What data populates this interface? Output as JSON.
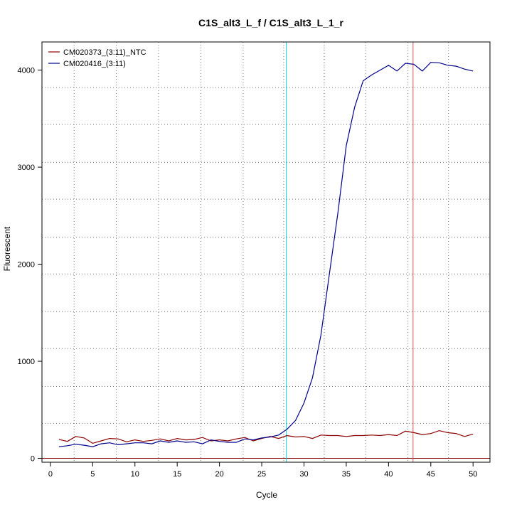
{
  "chart_data": {
    "type": "line",
    "title": "C1S_alt3_L_f / C1S_alt3_L_1_r",
    "xlabel": "Cycle",
    "ylabel": "Fluorescent",
    "xlim": [
      -1,
      52
    ],
    "ylim": [
      -40,
      4290
    ],
    "x_ticks": [
      0,
      5,
      10,
      15,
      20,
      25,
      30,
      35,
      40,
      45,
      50
    ],
    "y_ticks": [
      0,
      1000,
      2000,
      3000,
      4000
    ],
    "x_grid": [
      2.8,
      7.8,
      12.8,
      17.8,
      22.8,
      27.6,
      32.4,
      37.3,
      42.3,
      47.1
    ],
    "y_grid": [
      360,
      740,
      1130,
      1510,
      1900,
      2280,
      2670,
      3050,
      3440,
      3820
    ],
    "grid": true,
    "legend_position": "top-left",
    "baseline": {
      "y": 0,
      "color": "#8b0000"
    },
    "vlines": [
      {
        "x": 27.9,
        "color": "#00e5ee"
      },
      {
        "x": 42.9,
        "color": "#cd5c5c"
      }
    ],
    "series": [
      {
        "name": "CM020373_(3:11)_NTC",
        "color": "#8b0000",
        "x": [
          1,
          2,
          3,
          4,
          5,
          6,
          7,
          8,
          9,
          10,
          11,
          12,
          13,
          14,
          15,
          16,
          17,
          18,
          19,
          20,
          21,
          22,
          23,
          24,
          25,
          26,
          27,
          28,
          29,
          30,
          31,
          32,
          33,
          34,
          35,
          36,
          37,
          38,
          39,
          40,
          41,
          42,
          43,
          44,
          45,
          46,
          47,
          48,
          49,
          50
        ],
        "values": [
          195,
          175,
          225,
          210,
          155,
          180,
          205,
          200,
          170,
          190,
          175,
          185,
          200,
          180,
          205,
          190,
          195,
          215,
          180,
          190,
          180,
          200,
          215,
          180,
          205,
          225,
          205,
          235,
          220,
          225,
          205,
          240,
          235,
          235,
          225,
          235,
          235,
          240,
          235,
          245,
          235,
          280,
          265,
          245,
          255,
          285,
          265,
          255,
          225,
          250
        ]
      },
      {
        "name": "CM020416_(3:11)",
        "color": "#00008b",
        "x": [
          1,
          2,
          3,
          4,
          5,
          6,
          7,
          8,
          9,
          10,
          11,
          12,
          13,
          14,
          15,
          16,
          17,
          18,
          19,
          20,
          21,
          22,
          23,
          24,
          25,
          26,
          27,
          28,
          29,
          30,
          31,
          32,
          33,
          34,
          35,
          36,
          37,
          38,
          39,
          40,
          41,
          42,
          43,
          44,
          45,
          46,
          47,
          48,
          49,
          50
        ],
        "values": [
          120,
          130,
          145,
          135,
          120,
          150,
          160,
          140,
          150,
          160,
          160,
          150,
          180,
          165,
          180,
          165,
          170,
          150,
          190,
          175,
          165,
          165,
          200,
          190,
          210,
          220,
          240,
          300,
          390,
          570,
          830,
          1270,
          1900,
          2520,
          3220,
          3620,
          3890,
          3950,
          4000,
          4050,
          3990,
          4070,
          4060,
          3990,
          4080,
          4075,
          4050,
          4040,
          4010,
          3990
        ]
      }
    ]
  }
}
